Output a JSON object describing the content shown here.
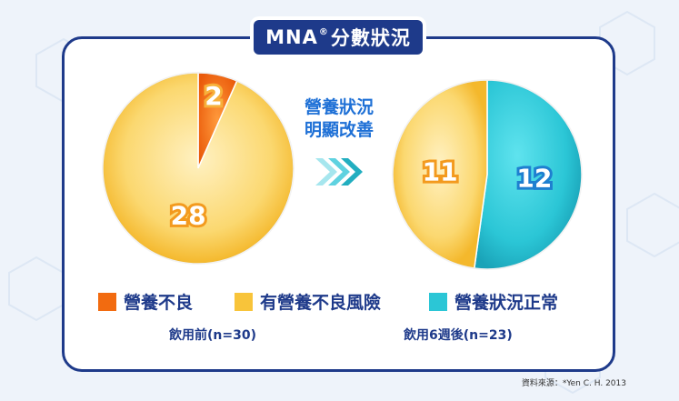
{
  "title_main": "MNA",
  "title_reg": "®",
  "title_rest": "分數狀況",
  "improve_line1": "營養狀況",
  "improve_line2": "明顯改善",
  "colors": {
    "malnourished": "#f26b10",
    "at_risk": "#f8c43a",
    "normal": "#2bc6d6",
    "navy": "#1e3a8a"
  },
  "legend": [
    {
      "label": "營養不良",
      "color": "#f26b10"
    },
    {
      "label": "有營養不良風險",
      "color": "#f8c43a"
    },
    {
      "label": "營養狀況正常",
      "color": "#2bc6d6"
    }
  ],
  "chart_data": [
    {
      "type": "pie",
      "caption": "飲用前(n=30)",
      "slices": [
        {
          "category": "營養不良",
          "value": 2,
          "label": "2"
        },
        {
          "category": "有營養不良風險",
          "value": 28,
          "label": "28"
        }
      ]
    },
    {
      "type": "pie",
      "caption": "飲用6週後(n=23)",
      "slices": [
        {
          "category": "營養狀況正常",
          "value": 12,
          "label": "12"
        },
        {
          "category": "有營養不良風險",
          "value": 11,
          "label": "11"
        }
      ]
    }
  ],
  "source": "資料來源：*Yen C. H. 2013"
}
